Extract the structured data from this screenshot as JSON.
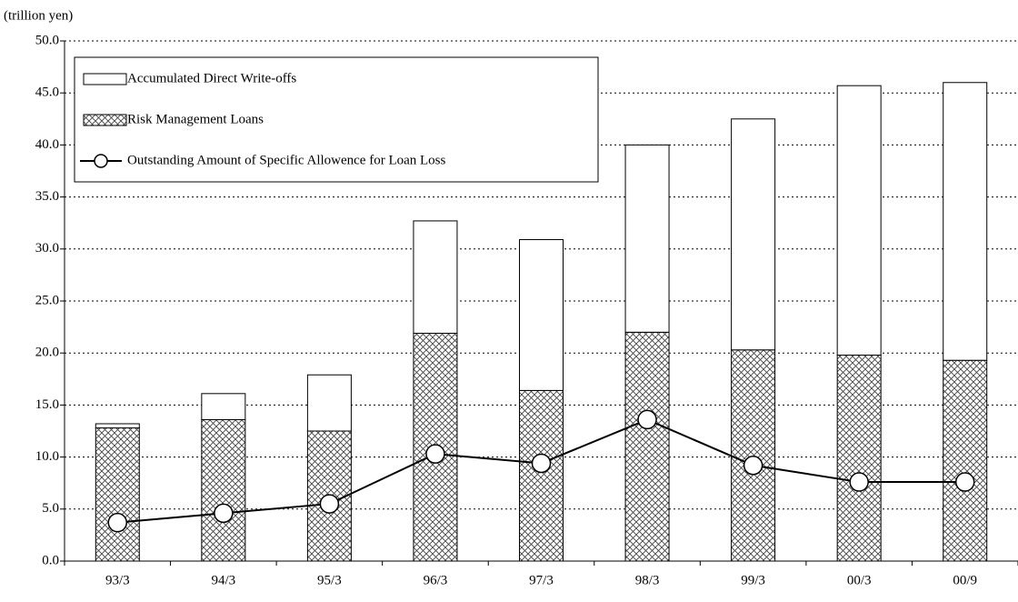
{
  "chart_data": {
    "type": "bar",
    "y_label": "(trillion yen)",
    "categories": [
      "93/3",
      "94/3",
      "95/3",
      "96/3",
      "97/3",
      "98/3",
      "99/3",
      "00/3",
      "00/9"
    ],
    "series": [
      {
        "name": "Accumulated Direct Write-offs",
        "type": "bar",
        "color": "#ffffff",
        "values": [
          0.4,
          2.5,
          5.4,
          10.8,
          14.5,
          18.0,
          22.2,
          25.9,
          26.7
        ]
      },
      {
        "name": "Risk Management Loans",
        "type": "bar",
        "color": "#ffffff",
        "pattern": "crosshatch",
        "values": [
          12.8,
          13.6,
          12.5,
          21.9,
          16.4,
          22.0,
          20.3,
          19.8,
          19.3
        ]
      },
      {
        "name": "Outstanding Amount of Specific Allowence for Loan Loss",
        "type": "line",
        "color": "#000000",
        "values": [
          3.7,
          4.6,
          5.5,
          10.3,
          9.4,
          13.6,
          9.2,
          7.6,
          7.6
        ]
      }
    ],
    "stacked": true,
    "ylim": [
      0,
      50
    ],
    "yticks": [
      {
        "value": 0,
        "label": "0.0"
      },
      {
        "value": 5,
        "label": "5.0"
      },
      {
        "value": 10,
        "label": "10.0"
      },
      {
        "value": 15,
        "label": "15.0"
      },
      {
        "value": 20,
        "label": "20.0"
      },
      {
        "value": 25,
        "label": "25.0"
      },
      {
        "value": 30,
        "label": "30.0"
      },
      {
        "value": 35,
        "label": "35.0"
      },
      {
        "value": 40,
        "label": "40.0"
      },
      {
        "value": 45,
        "label": "45.0"
      },
      {
        "value": 50,
        "label": "50.0"
      }
    ],
    "grid": true,
    "legend": "upper left"
  }
}
